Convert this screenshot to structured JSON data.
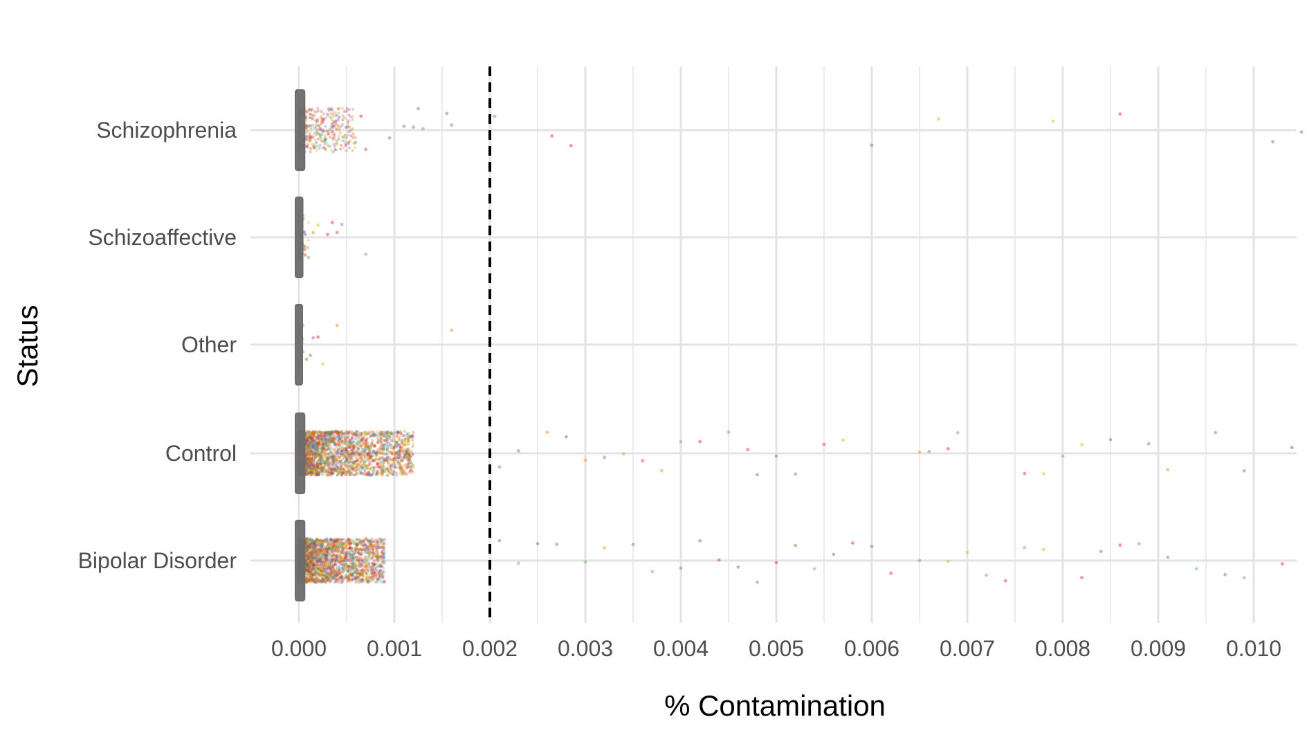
{
  "chart_data": {
    "type": "scatter",
    "subtype": "jittered strip plot with boxplots",
    "xlabel": "% Contamination",
    "ylabel": "Status",
    "xlim": [
      -0.0001,
      0.0105
    ],
    "x_ticks": [
      "0.000",
      "0.001",
      "0.002",
      "0.003",
      "0.004",
      "0.005",
      "0.006",
      "0.007",
      "0.008",
      "0.009",
      "0.010"
    ],
    "x_tick_values": [
      0,
      0.001,
      0.002,
      0.003,
      0.004,
      0.005,
      0.006,
      0.007,
      0.008,
      0.009,
      0.01
    ],
    "reference_line": {
      "x": 0.002,
      "style": "dashed",
      "color": "#000000"
    },
    "grid": true,
    "legend": "none",
    "categories": [
      "Schizophrenia",
      "Schizoaffective",
      "Other",
      "Control",
      "Bipolar Disorder"
    ],
    "series": [
      {
        "category": "Schizophrenia",
        "n": 420,
        "dense_max": 0.0006,
        "box_max": 6e-05,
        "tail": [
          0.00065,
          0.0007,
          0.00095,
          0.0011,
          0.0012,
          0.00125,
          0.0013,
          0.00155,
          0.0016,
          0.00205,
          0.00265,
          0.00285,
          0.006,
          0.0067,
          0.0079,
          0.0086,
          0.0102,
          0.0105
        ]
      },
      {
        "category": "Schizoaffective",
        "n": 70,
        "dense_max": 0.0001,
        "box_max": 4e-05,
        "tail": [
          0.0001,
          0.00015,
          0.0002,
          0.0003,
          0.00035,
          0.0004,
          0.00045,
          0.0007
        ]
      },
      {
        "category": "Other",
        "n": 30,
        "dense_max": 5e-05,
        "box_max": 3e-05,
        "tail": [
          8e-05,
          0.00012,
          0.00015,
          0.0002,
          0.00025,
          0.0004,
          0.0016
        ]
      },
      {
        "category": "Control",
        "n": 2600,
        "dense_max": 0.0012,
        "box_max": 6e-05,
        "tail": [
          0.0021,
          0.0023,
          0.0026,
          0.0028,
          0.003,
          0.0032,
          0.0034,
          0.0036,
          0.0038,
          0.004,
          0.0042,
          0.0045,
          0.0047,
          0.0048,
          0.005,
          0.0052,
          0.0055,
          0.0057,
          0.0065,
          0.0066,
          0.0068,
          0.0069,
          0.0076,
          0.0078,
          0.008,
          0.0082,
          0.0085,
          0.0089,
          0.0091,
          0.0096,
          0.0099,
          0.0104
        ]
      },
      {
        "category": "Bipolar Disorder",
        "n": 2400,
        "dense_max": 0.0009,
        "box_max": 6e-05,
        "tail": [
          0.0021,
          0.0023,
          0.0025,
          0.0027,
          0.003,
          0.0032,
          0.0035,
          0.0037,
          0.004,
          0.0042,
          0.0044,
          0.0046,
          0.0048,
          0.005,
          0.0052,
          0.0054,
          0.0056,
          0.0058,
          0.006,
          0.0062,
          0.0065,
          0.0068,
          0.007,
          0.0072,
          0.0074,
          0.0076,
          0.0078,
          0.0082,
          0.0084,
          0.0086,
          0.0088,
          0.0091,
          0.0094,
          0.0097,
          0.0099,
          0.0103
        ]
      }
    ],
    "point_colors": [
      "#e41a1c",
      "#377eb8",
      "#4daf4a",
      "#984ea3",
      "#ff7f00",
      "#e6ab02",
      "#a65628"
    ],
    "box_color": "#6b6b6b"
  }
}
